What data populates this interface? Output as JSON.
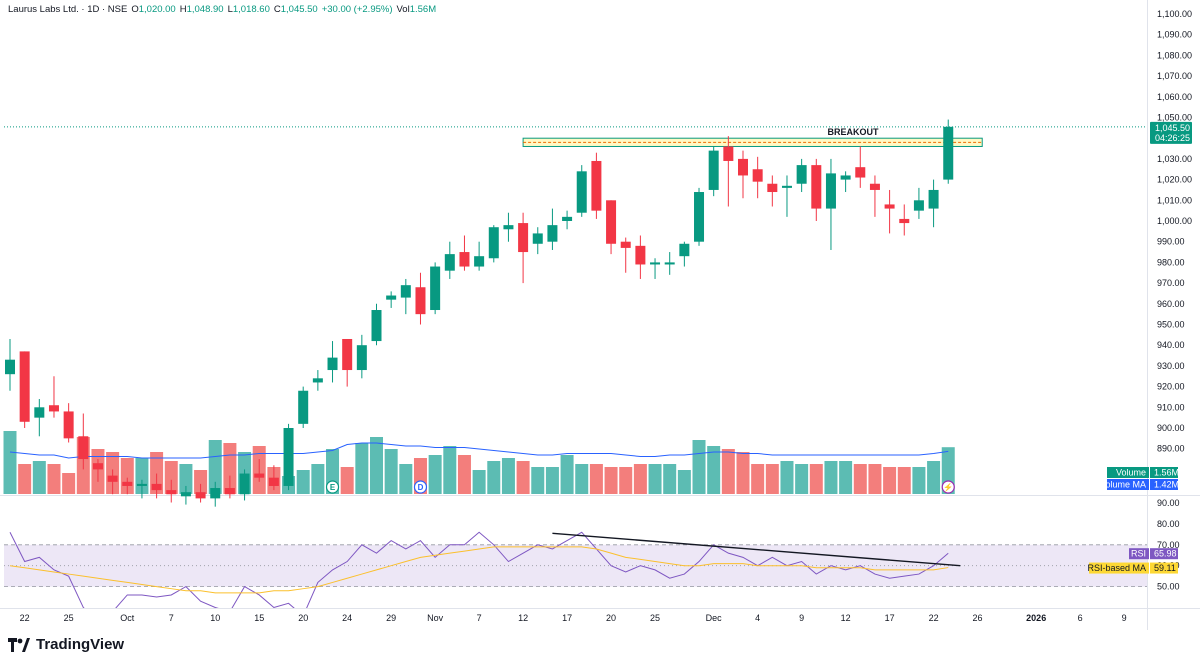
{
  "legend": {
    "symbol": "Laurus Labs Ltd. · 1D · NSE",
    "open_label": "O",
    "open": "1,020.00",
    "high_label": "H",
    "high": "1,048.90",
    "low_label": "L",
    "low": "1,018.60",
    "close_label": "C",
    "close": "1,045.50",
    "change": "+30.00 (+2.95%)",
    "vol_label": "Vol",
    "vol": "1.56M"
  },
  "footer": {
    "brand": "TradingView"
  },
  "colors": {
    "up": "#089981",
    "down": "#f23645",
    "volume_ma": "#2962ff",
    "rsi": "#7e57c2",
    "rsi_ma": "#fbc02d",
    "rsi_band": "#ede7f6"
  },
  "chart_data": [
    {
      "type": "candlestick",
      "title": "Laurus Labs Ltd. · 1D · NSE",
      "ylim": [
        860,
        1100
      ],
      "y_ticks": [
        "1,100.00",
        "1,090.00",
        "1,080.00",
        "1,070.00",
        "1,060.00",
        "1,050.00",
        "1,040.00",
        "1,030.00",
        "1,020.00",
        "1,010.00",
        "1,000.00",
        "990.00",
        "980.00",
        "970.00",
        "960.00",
        "950.00",
        "940.00",
        "930.00",
        "920.00",
        "910.00",
        "900.00",
        "890.00"
      ],
      "y_tick_values": [
        1100,
        1090,
        1080,
        1070,
        1060,
        1050,
        1040,
        1030,
        1020,
        1010,
        1000,
        990,
        980,
        970,
        960,
        950,
        940,
        930,
        920,
        910,
        900,
        890
      ],
      "x_ticks": [
        {
          "label": "22",
          "index": 1
        },
        {
          "label": "25",
          "index": 4
        },
        {
          "label": "Oct",
          "index": 8
        },
        {
          "label": "7",
          "index": 11
        },
        {
          "label": "10",
          "index": 14
        },
        {
          "label": "15",
          "index": 17
        },
        {
          "label": "20",
          "index": 20
        },
        {
          "label": "24",
          "index": 23
        },
        {
          "label": "29",
          "index": 26
        },
        {
          "label": "Nov",
          "index": 29
        },
        {
          "label": "7",
          "index": 32
        },
        {
          "label": "12",
          "index": 35
        },
        {
          "label": "17",
          "index": 38
        },
        {
          "label": "20",
          "index": 41
        },
        {
          "label": "25",
          "index": 44
        },
        {
          "label": "Dec",
          "index": 48
        },
        {
          "label": "4",
          "index": 51
        },
        {
          "label": "9",
          "index": 54
        },
        {
          "label": "12",
          "index": 57
        },
        {
          "label": "17",
          "index": 60
        },
        {
          "label": "22",
          "index": 63
        },
        {
          "label": "26",
          "index": 66
        },
        {
          "label": "2026",
          "index": 70
        },
        {
          "label": "6",
          "index": 73
        },
        {
          "label": "9",
          "index": 76
        }
      ],
      "candles": [
        {
          "o": 926,
          "h": 943,
          "l": 918,
          "c": 933
        },
        {
          "o": 937,
          "h": 937,
          "l": 900,
          "c": 903
        },
        {
          "o": 905,
          "h": 914,
          "l": 896,
          "c": 910
        },
        {
          "o": 911,
          "h": 925,
          "l": 905,
          "c": 908
        },
        {
          "o": 908,
          "h": 912,
          "l": 893,
          "c": 895
        },
        {
          "o": 896,
          "h": 907,
          "l": 880,
          "c": 885
        },
        {
          "o": 883,
          "h": 885,
          "l": 874,
          "c": 880
        },
        {
          "o": 877,
          "h": 880,
          "l": 868,
          "c": 874
        },
        {
          "o": 874,
          "h": 876,
          "l": 868,
          "c": 872
        },
        {
          "o": 872,
          "h": 875,
          "l": 866,
          "c": 873
        },
        {
          "o": 873,
          "h": 878,
          "l": 866,
          "c": 870
        },
        {
          "o": 870,
          "h": 875,
          "l": 864,
          "c": 868
        },
        {
          "o": 867,
          "h": 872,
          "l": 863,
          "c": 869
        },
        {
          "o": 869,
          "h": 873,
          "l": 864,
          "c": 866
        },
        {
          "o": 866,
          "h": 874,
          "l": 862,
          "c": 871
        },
        {
          "o": 871,
          "h": 877,
          "l": 866,
          "c": 868
        },
        {
          "o": 868,
          "h": 880,
          "l": 865,
          "c": 878
        },
        {
          "o": 878,
          "h": 885,
          "l": 874,
          "c": 876
        },
        {
          "o": 876,
          "h": 882,
          "l": 870,
          "c": 872
        },
        {
          "o": 872,
          "h": 902,
          "l": 870,
          "c": 900
        },
        {
          "o": 902,
          "h": 920,
          "l": 900,
          "c": 918
        },
        {
          "o": 922,
          "h": 928,
          "l": 918,
          "c": 924
        },
        {
          "o": 928,
          "h": 942,
          "l": 922,
          "c": 934
        },
        {
          "o": 943,
          "h": 943,
          "l": 920,
          "c": 928
        },
        {
          "o": 928,
          "h": 945,
          "l": 924,
          "c": 940
        },
        {
          "o": 942,
          "h": 960,
          "l": 940,
          "c": 957
        },
        {
          "o": 962,
          "h": 966,
          "l": 958,
          "c": 964
        },
        {
          "o": 963,
          "h": 972,
          "l": 955,
          "c": 969
        },
        {
          "o": 968,
          "h": 975,
          "l": 950,
          "c": 955
        },
        {
          "o": 957,
          "h": 980,
          "l": 955,
          "c": 978
        },
        {
          "o": 976,
          "h": 990,
          "l": 972,
          "c": 984
        },
        {
          "o": 985,
          "h": 993,
          "l": 976,
          "c": 978
        },
        {
          "o": 978,
          "h": 990,
          "l": 976,
          "c": 983
        },
        {
          "o": 982,
          "h": 998,
          "l": 980,
          "c": 997
        },
        {
          "o": 996,
          "h": 1004,
          "l": 990,
          "c": 998
        },
        {
          "o": 999,
          "h": 1004,
          "l": 970,
          "c": 985
        },
        {
          "o": 989,
          "h": 997,
          "l": 984,
          "c": 994
        },
        {
          "o": 990,
          "h": 1006,
          "l": 986,
          "c": 998
        },
        {
          "o": 1000,
          "h": 1005,
          "l": 996,
          "c": 1002
        },
        {
          "o": 1004,
          "h": 1027,
          "l": 1002,
          "c": 1024
        },
        {
          "o": 1029,
          "h": 1033,
          "l": 1001,
          "c": 1005
        },
        {
          "o": 1010,
          "h": 1010,
          "l": 984,
          "c": 989
        },
        {
          "o": 990,
          "h": 992,
          "l": 975,
          "c": 987
        },
        {
          "o": 988,
          "h": 993,
          "l": 972,
          "c": 979
        },
        {
          "o": 979,
          "h": 982,
          "l": 972,
          "c": 980
        },
        {
          "o": 979,
          "h": 985,
          "l": 974,
          "c": 980
        },
        {
          "o": 983,
          "h": 990,
          "l": 978,
          "c": 989
        },
        {
          "o": 990,
          "h": 1016,
          "l": 988,
          "c": 1014
        },
        {
          "o": 1015,
          "h": 1036,
          "l": 1012,
          "c": 1034
        },
        {
          "o": 1036,
          "h": 1041,
          "l": 1007,
          "c": 1029
        },
        {
          "o": 1030,
          "h": 1034,
          "l": 1011,
          "c": 1022
        },
        {
          "o": 1025,
          "h": 1031,
          "l": 1011,
          "c": 1019
        },
        {
          "o": 1018,
          "h": 1022,
          "l": 1007,
          "c": 1014
        },
        {
          "o": 1016,
          "h": 1022,
          "l": 1002,
          "c": 1017
        },
        {
          "o": 1018,
          "h": 1030,
          "l": 1014,
          "c": 1027
        },
        {
          "o": 1027,
          "h": 1030,
          "l": 1000,
          "c": 1006
        },
        {
          "o": 1006,
          "h": 1030,
          "l": 986,
          "c": 1023
        },
        {
          "o": 1020,
          "h": 1024,
          "l": 1014,
          "c": 1022
        },
        {
          "o": 1026,
          "h": 1036,
          "l": 1016,
          "c": 1021
        },
        {
          "o": 1018,
          "h": 1022,
          "l": 1002,
          "c": 1015
        },
        {
          "o": 1008,
          "h": 1015,
          "l": 994,
          "c": 1006
        },
        {
          "o": 1001,
          "h": 1008,
          "l": 993,
          "c": 999
        },
        {
          "o": 1005,
          "h": 1016,
          "l": 1001,
          "c": 1010
        },
        {
          "o": 1006,
          "h": 1020,
          "l": 997,
          "c": 1015
        },
        {
          "o": 1020,
          "h": 1049,
          "l": 1018,
          "c": 1045.5
        }
      ],
      "volume": [
        2.1,
        1.0,
        1.1,
        1.0,
        0.7,
        1.9,
        1.5,
        1.4,
        1.2,
        1.2,
        1.4,
        1.1,
        1.0,
        0.8,
        1.8,
        1.7,
        1.4,
        1.6,
        0.9,
        0.6,
        0.8,
        1.0,
        1.5,
        0.9,
        1.7,
        1.9,
        1.5,
        1.0,
        1.2,
        1.3,
        1.6,
        1.3,
        0.8,
        1.1,
        1.2,
        1.1,
        0.9,
        0.9,
        1.3,
        1.0,
        1.0,
        0.9,
        0.9,
        1.0,
        1.0,
        1.0,
        0.8,
        1.8,
        1.6,
        1.5,
        1.4,
        1.0,
        1.0,
        1.1,
        1.0,
        1.0,
        1.1,
        1.1,
        1.0,
        1.0,
        0.9,
        0.9,
        0.9,
        1.1,
        1.56
      ],
      "volume_ma": [
        1.4,
        1.35,
        1.3,
        1.3,
        1.2,
        1.25,
        1.25,
        1.25,
        1.25,
        1.2,
        1.2,
        1.2,
        1.2,
        1.2,
        1.25,
        1.3,
        1.3,
        1.35,
        1.35,
        1.35,
        1.35,
        1.4,
        1.45,
        1.65,
        1.7,
        1.7,
        1.65,
        1.6,
        1.6,
        1.55,
        1.55,
        1.55,
        1.5,
        1.45,
        1.4,
        1.35,
        1.3,
        1.3,
        1.35,
        1.35,
        1.35,
        1.35,
        1.3,
        1.25,
        1.25,
        1.3,
        1.3,
        1.35,
        1.4,
        1.4,
        1.35,
        1.35,
        1.3,
        1.3,
        1.3,
        1.3,
        1.3,
        1.3,
        1.3,
        1.3,
        1.3,
        1.3,
        1.3,
        1.35,
        1.42
      ],
      "volume_max": 3.2,
      "resistance_band": {
        "high": 1040,
        "low": 1036,
        "from_index": 35,
        "to_index": 67,
        "label": "BREAKOUT"
      },
      "last_price": {
        "value": "1,045.50",
        "countdown": "04:26:25",
        "level": 1045.5
      },
      "volume_tags": [
        {
          "label": "Volume",
          "value": "1.56M"
        },
        {
          "label": "Volume MA",
          "value": "1.42M"
        }
      ],
      "event_markers": [
        {
          "index": 22,
          "letter": "E"
        },
        {
          "index": 28,
          "letter": "D"
        },
        {
          "index": 64,
          "letter": "⚡"
        }
      ]
    },
    {
      "type": "line",
      "title": "RSI",
      "ylim": [
        40,
        95
      ],
      "y_ticks": [
        "90.00",
        "80.00",
        "70.00",
        "60.00",
        "50.00"
      ],
      "y_tick_values": [
        90,
        80,
        70,
        60,
        50
      ],
      "band": [
        50,
        70
      ],
      "series": [
        {
          "name": "RSI",
          "values": [
            76,
            62,
            64,
            58,
            55,
            40,
            34,
            38,
            46,
            46,
            45,
            46,
            50,
            43,
            40,
            38,
            50,
            46,
            40,
            42,
            36,
            52,
            58,
            62,
            70,
            66,
            72,
            68,
            72,
            64,
            70,
            70,
            76,
            70,
            62,
            66,
            70,
            68,
            72,
            76,
            68,
            60,
            57,
            60,
            58,
            54,
            56,
            62,
            70,
            66,
            64,
            60,
            64,
            60,
            62,
            56,
            60,
            58,
            60,
            56,
            54,
            55,
            56,
            60,
            65.98
          ]
        },
        {
          "name": "RSI-based MA",
          "values": [
            60,
            59,
            58,
            57,
            56,
            55,
            54,
            53,
            52,
            51,
            50,
            49,
            48,
            48,
            47,
            47,
            47,
            47,
            48,
            48,
            49,
            50,
            52,
            54,
            56,
            58,
            60,
            62,
            64,
            65,
            66,
            67,
            68,
            69,
            69,
            69,
            69,
            69,
            69,
            69,
            68,
            66,
            64,
            63,
            62,
            61,
            60,
            60,
            61,
            61,
            61,
            60,
            60,
            60,
            60,
            59,
            59,
            59,
            59,
            58,
            58,
            58,
            58,
            58,
            59.11
          ]
        }
      ],
      "trendline": {
        "from_index": 37,
        "from_value": 75.5,
        "to_index": 64,
        "to_value": 60
      },
      "tags": [
        {
          "label": "RSI",
          "value": "65.98"
        },
        {
          "label": "RSI-based MA",
          "value": "59.11"
        }
      ]
    }
  ]
}
